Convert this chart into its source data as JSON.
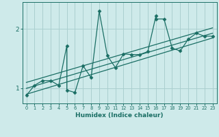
{
  "xlabel": "Humidex (Indice chaleur)",
  "bg_color": "#ceeaea",
  "line_color": "#1a6e64",
  "grid_color": "#aacfcf",
  "xlim": [
    -0.5,
    23.5
  ],
  "ylim": [
    0.75,
    2.45
  ],
  "yticks": [
    1,
    2
  ],
  "xticks": [
    0,
    1,
    2,
    3,
    4,
    5,
    6,
    7,
    8,
    9,
    10,
    11,
    12,
    13,
    14,
    15,
    16,
    17,
    18,
    19,
    20,
    21,
    22,
    23
  ],
  "main_x": [
    0,
    1,
    2,
    3,
    4,
    5,
    5,
    6,
    7,
    8,
    9,
    10,
    11,
    12,
    13,
    14,
    15,
    16,
    16,
    17,
    18,
    19,
    20,
    21,
    22,
    23
  ],
  "main_y": [
    0.88,
    1.05,
    1.13,
    1.13,
    1.05,
    1.72,
    0.97,
    0.93,
    1.38,
    1.18,
    2.3,
    1.55,
    1.35,
    1.58,
    1.57,
    1.57,
    1.62,
    2.22,
    2.17,
    2.17,
    1.68,
    1.63,
    1.83,
    1.93,
    1.88,
    1.88
  ],
  "trend1_x": [
    0,
    23
  ],
  "trend1_y": [
    0.9,
    1.85
  ],
  "trend2_x": [
    0,
    23
  ],
  "trend2_y": [
    1.0,
    1.93
  ],
  "trend3_x": [
    0,
    23
  ],
  "trend3_y": [
    1.1,
    2.02
  ]
}
